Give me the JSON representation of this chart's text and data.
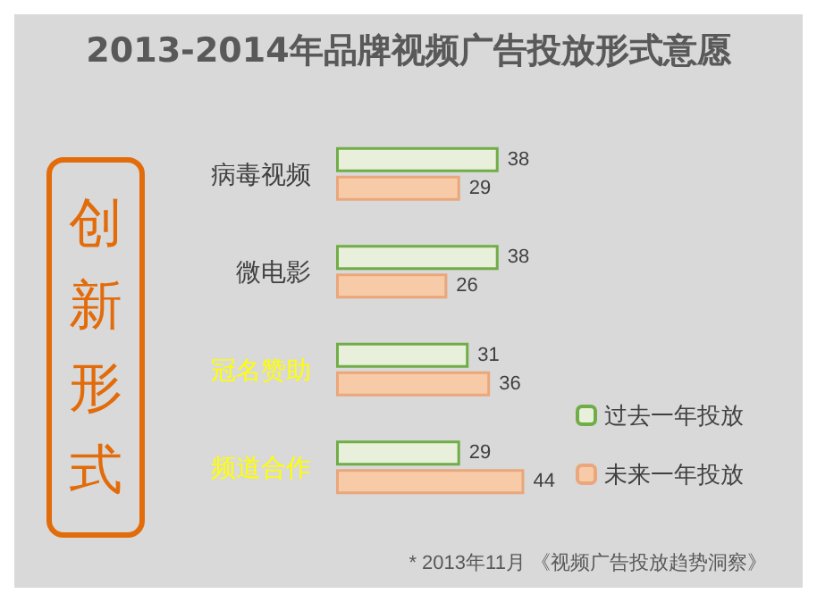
{
  "chart_data": {
    "type": "bar",
    "orientation": "horizontal",
    "title": "2013-2014年品牌视频广告投放形式意愿",
    "categories": [
      "病毒视频",
      "微电影",
      "冠名赞助",
      "频道合作"
    ],
    "series": [
      {
        "name": "过去一年投放",
        "color": "#e8f0dc",
        "values": [
          38,
          38,
          31,
          29
        ]
      },
      {
        "name": "未来一年投放",
        "color": "#f8cba8",
        "values": [
          29,
          26,
          36,
          44
        ]
      }
    ],
    "data_labels": true,
    "legend": "bottom right",
    "annotations": [
      "创新形式",
      "* 2013年11月 《视频广告投放趋势洞察》"
    ]
  }
}
